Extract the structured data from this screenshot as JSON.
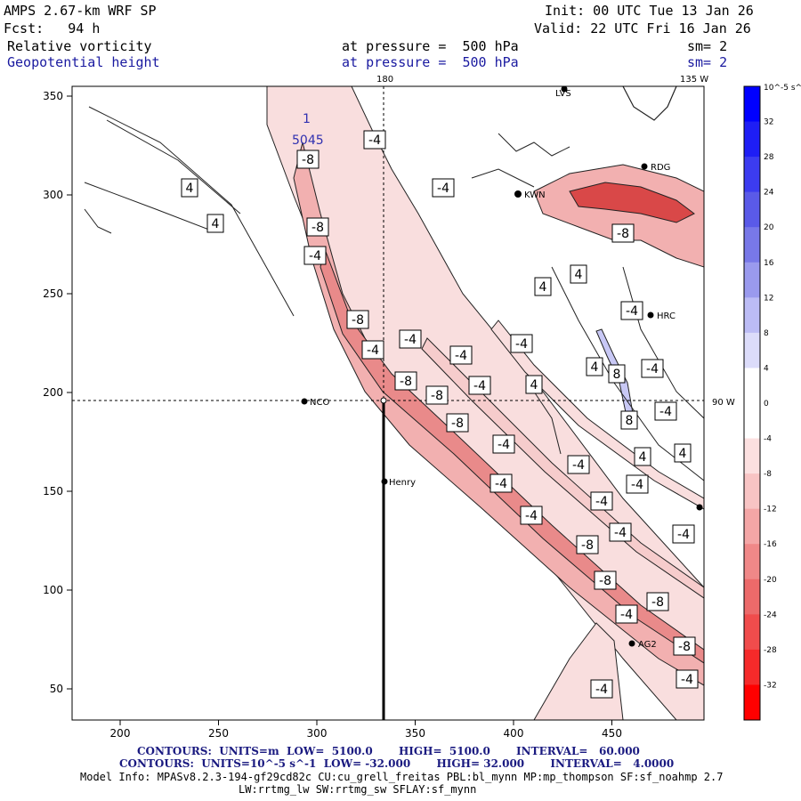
{
  "header": {
    "model": "AMPS 2.67-km WRF SP",
    "init": "Init: 00 UTC Tue 13 Jan 26",
    "fcst": "Fcst:   94 h",
    "valid": "Valid: 22 UTC Fri 16 Jan 26",
    "field1": "Relative vorticity",
    "pressure1": "at pressure =  500 hPa",
    "sm1": "sm= 2",
    "field2": "Geopotential height",
    "pressure2": "at pressure =  500 hPa",
    "sm2": "sm= 2"
  },
  "map": {
    "lon_top_180": "180",
    "lon_top_135": "135 W",
    "lon_right_90": "90 W",
    "height_label_1": "1",
    "height_label_5045": "5045",
    "stations": [
      "NCO",
      "Henry",
      "KWN",
      "RDG",
      "HRC",
      "AG2",
      "LVS"
    ],
    "colors": {
      "pos": "#0000e6",
      "neg": "#ff0000",
      "light_neg": "#f7d8d8",
      "mid_neg": "#e88a8a"
    }
  },
  "contour_labels": {
    "a": "4",
    "b": "-4",
    "c": "-8",
    "d": "8"
  },
  "colorbar": {
    "unit": "10^-5 s^-1",
    "ticks": [
      "32",
      "28",
      "24",
      "20",
      "16",
      "12",
      "8",
      "4",
      "0",
      "-4",
      "-8",
      "-12",
      "-16",
      "-20",
      "-24",
      "-28",
      "-32"
    ],
    "colors": [
      "#0000ff",
      "#1e1ef5",
      "#3c3cf0",
      "#5a5ae8",
      "#7878e8",
      "#9a9aee",
      "#bcbcf5",
      "#dcdcfa",
      "#ffffff",
      "#ffffff",
      "#fce0e0",
      "#f8c4c4",
      "#f4a6a6",
      "#f08888",
      "#ec6a6a",
      "#f04c4c",
      "#f52a2a",
      "#ff0000"
    ]
  },
  "axes": {
    "x_ticks": [
      "200",
      "250",
      "300",
      "350",
      "400",
      "450"
    ],
    "y_ticks": [
      "350",
      "300",
      "250",
      "200",
      "150",
      "100",
      "50"
    ]
  },
  "footer": {
    "contours_height": "CONTOURS:  UNITS=m  LOW=  5100.0       HIGH=  5100.0       INTERVAL=   60.000",
    "contours_vort": "CONTOURS:  UNITS=10^-5 s^-1  LOW= -32.000       HIGH= 32.000       INTERVAL=   4.0000",
    "model_info": "Model Info: MPASv8.2.3-194-gf29cd82c CU:cu_grell_freitas PBL:bl_mynn MP:mp_thompson SF:sf_noahmp 2.7",
    "model_info2": "LW:rrtmg_lw SW:rrtmg_sw SFLAY:sf_mynn"
  }
}
